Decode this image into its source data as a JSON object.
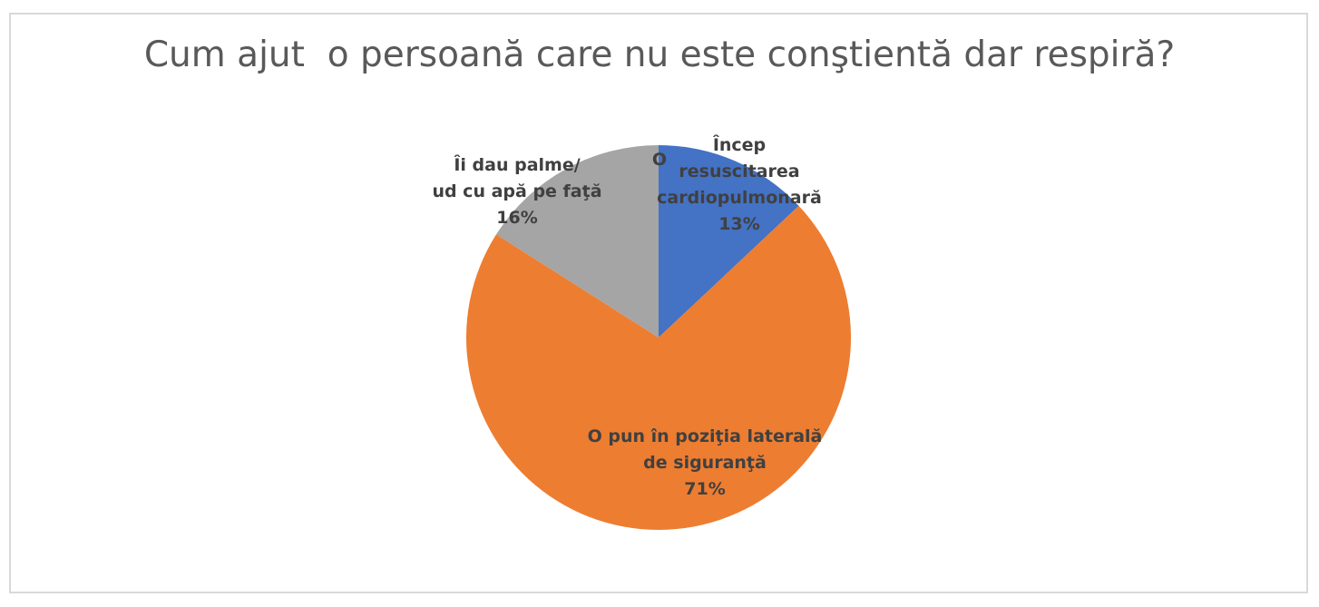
{
  "chart_data": {
    "type": "pie",
    "title": "Cum ajut  o persoană care nu este conştientă dar respiră?",
    "slices": [
      {
        "label_lines": [
          "Încep",
          "resuscitarea",
          "cardiopulmonară"
        ],
        "value": 13,
        "pct_label": "13%",
        "color": "#4472c4"
      },
      {
        "label_lines": [
          "O pun în poziţia laterală",
          "de siguranţă"
        ],
        "value": 71,
        "pct_label": "71%",
        "color": "#ed7d31"
      },
      {
        "label_lines": [
          "Îi dau palme/",
          "ud cu apă pe faţă"
        ],
        "value": 16,
        "pct_label": "16%",
        "color": "#a5a5a5"
      }
    ],
    "stray_label": "O",
    "legend": "none"
  }
}
